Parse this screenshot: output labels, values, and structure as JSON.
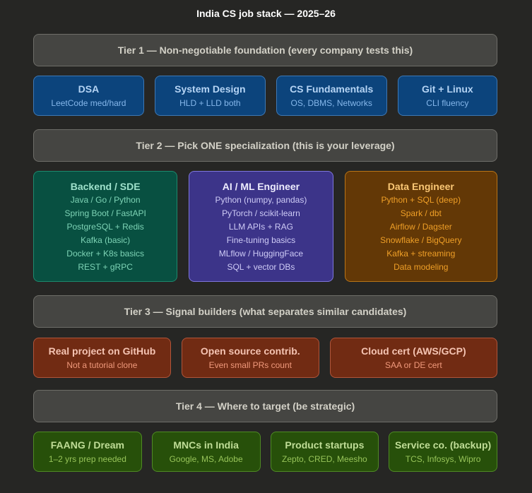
{
  "title": "India CS job stack — 2025–26",
  "tiers": [
    {
      "label": "Tier 1 — Non-negotiable foundation (every company tests this)",
      "items": [
        {
          "title": "DSA",
          "sub": "LeetCode med/hard"
        },
        {
          "title": "System Design",
          "sub": "HLD + LLD both"
        },
        {
          "title": "CS Fundamentals",
          "sub": "OS, DBMS, Networks"
        },
        {
          "title": "Git + Linux",
          "sub": "CLI fluency"
        }
      ]
    },
    {
      "label": "Tier 2 — Pick ONE specialization (this is your leverage)",
      "items": [
        {
          "title": "Backend / SDE",
          "lines": [
            "Java / Go / Python",
            "Spring Boot / FastAPI",
            "PostgreSQL + Redis",
            "Kafka (basic)",
            "Docker + K8s basics",
            "REST + gRPC"
          ]
        },
        {
          "title": "AI / ML Engineer",
          "lines": [
            "Python (numpy, pandas)",
            "PyTorch / scikit-learn",
            "LLM APIs + RAG",
            "Fine-tuning basics",
            "MLflow / HuggingFace",
            "SQL + vector DBs"
          ]
        },
        {
          "title": "Data Engineer",
          "lines": [
            "Python + SQL (deep)",
            "Spark / dbt",
            "Airflow / Dagster",
            "Snowflake / BigQuery",
            "Kafka + streaming",
            "Data modeling"
          ]
        }
      ]
    },
    {
      "label": "Tier 3 — Signal builders (what separates similar candidates)",
      "items": [
        {
          "title": "Real project on GitHub",
          "sub": "Not a tutorial clone"
        },
        {
          "title": "Open source contrib.",
          "sub": "Even small PRs count"
        },
        {
          "title": "Cloud cert (AWS/GCP)",
          "sub": "SAA or DE cert"
        }
      ]
    },
    {
      "label": "Tier 4 — Where to target (be strategic)",
      "items": [
        {
          "title": "FAANG / Dream",
          "sub": "1–2 yrs prep needed"
        },
        {
          "title": "MNCs in India",
          "sub": "Google, MS, Adobe"
        },
        {
          "title": "Product startups",
          "sub": "Zepto, CRED, Meesho"
        },
        {
          "title": "Service co. (backup)",
          "sub": "TCS, Infosys, Wipro"
        }
      ]
    }
  ]
}
